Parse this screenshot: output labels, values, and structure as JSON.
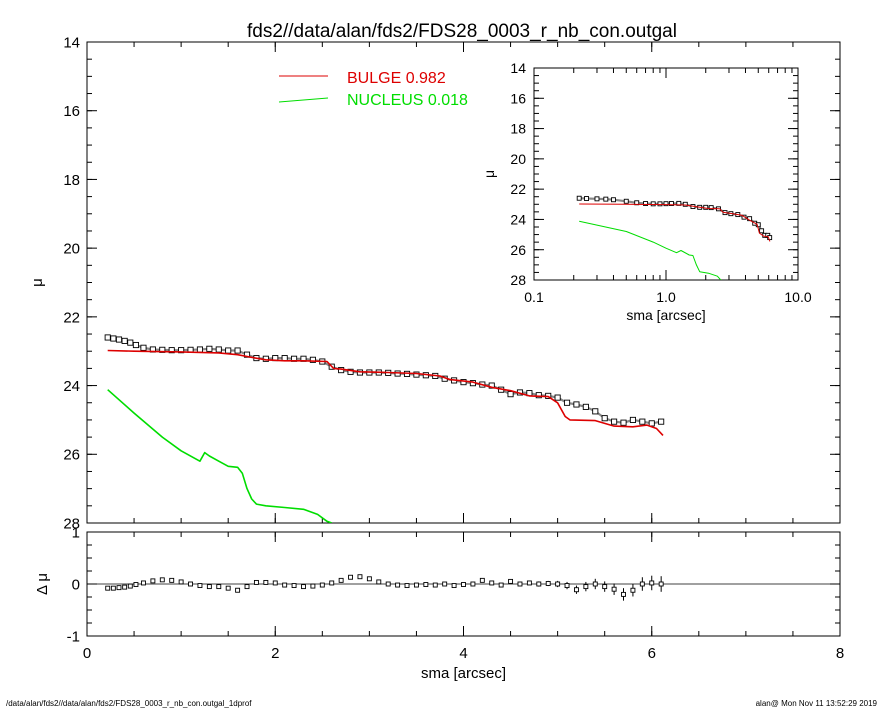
{
  "title": "fds2//data/alan/fds2/FDS28_0003_r_nb_con.outgal",
  "footer_left": "/data/alan/fds2//data/alan/fds2/FDS28_0003_r_nb_con.outgal_1dprof",
  "footer_right": "alan@  Mon Nov 11 13:52:29 2019",
  "colors": {
    "bulge": "#dd0000",
    "nucleus": "#00dd00",
    "data": "#000000",
    "model": "#888888"
  },
  "chart_data": [
    {
      "type": "scatter",
      "panel": "main",
      "xlabel": "sma [arcsec]",
      "ylabel": "μ",
      "xlim": [
        0,
        8
      ],
      "ylim": [
        28,
        14
      ],
      "xticks": [
        "0",
        "2",
        "4",
        "6",
        "8"
      ],
      "yticks": [
        "14",
        "16",
        "18",
        "20",
        "22",
        "24",
        "26",
        "28"
      ],
      "legend_placement": "top",
      "legend": [
        {
          "label": "BULGE",
          "value": "0.982",
          "color": "#dd0000"
        },
        {
          "label": "NUCLEUS",
          "value": "0.018",
          "color": "#00dd00"
        }
      ],
      "series": [
        {
          "name": "data",
          "style": "open-square",
          "x": [
            0.22,
            0.28,
            0.34,
            0.4,
            0.46,
            0.52,
            0.6,
            0.7,
            0.8,
            0.9,
            1.0,
            1.1,
            1.2,
            1.3,
            1.4,
            1.5,
            1.6,
            1.7,
            1.8,
            1.9,
            2.0,
            2.1,
            2.2,
            2.3,
            2.4,
            2.5,
            2.6,
            2.7,
            2.8,
            2.9,
            3.0,
            3.1,
            3.2,
            3.3,
            3.4,
            3.5,
            3.6,
            3.7,
            3.8,
            3.9,
            4.0,
            4.1,
            4.2,
            4.3,
            4.4,
            4.5,
            4.6,
            4.7,
            4.8,
            4.9,
            5.0,
            5.1,
            5.2,
            5.3,
            5.4,
            5.5,
            5.6,
            5.7,
            5.8,
            5.9,
            6.0,
            6.1
          ],
          "y": [
            22.6,
            22.63,
            22.66,
            22.7,
            22.75,
            22.82,
            22.9,
            22.95,
            22.96,
            22.97,
            22.97,
            22.96,
            22.95,
            22.93,
            22.95,
            22.98,
            22.98,
            23.1,
            23.2,
            23.22,
            23.2,
            23.2,
            23.22,
            23.22,
            23.25,
            23.3,
            23.45,
            23.55,
            23.6,
            23.62,
            23.62,
            23.62,
            23.63,
            23.65,
            23.66,
            23.68,
            23.7,
            23.72,
            23.8,
            23.85,
            23.9,
            23.93,
            23.97,
            24.0,
            24.12,
            24.25,
            24.2,
            24.22,
            24.28,
            24.3,
            24.35,
            24.5,
            24.55,
            24.62,
            24.75,
            24.95,
            25.05,
            25.08,
            25.0,
            25.05,
            25.1,
            25.05
          ]
        },
        {
          "name": "BULGE",
          "color": "#dd0000",
          "x": [
            0.22,
            0.5,
            1.0,
            1.4,
            1.6,
            1.75,
            1.9,
            2.1,
            2.3,
            2.55,
            2.62,
            2.7,
            2.9,
            3.2,
            3.5,
            3.75,
            3.85,
            4.1,
            4.3,
            4.5,
            4.7,
            4.9,
            5.0,
            5.08,
            5.13,
            5.4,
            5.5,
            5.6,
            5.8,
            5.95,
            6.05,
            6.12
          ],
          "y": [
            22.98,
            23.0,
            23.02,
            23.05,
            23.1,
            23.18,
            23.25,
            23.28,
            23.28,
            23.3,
            23.5,
            23.52,
            23.6,
            23.62,
            23.65,
            23.72,
            23.82,
            23.9,
            24.05,
            24.15,
            24.3,
            24.32,
            24.5,
            24.9,
            25.0,
            25.02,
            25.1,
            25.18,
            25.2,
            25.15,
            25.25,
            25.45
          ]
        },
        {
          "name": "NUCLEUS",
          "color": "#00dd00",
          "x": [
            0.22,
            0.5,
            0.8,
            1.0,
            1.2,
            1.25,
            1.3,
            1.4,
            1.5,
            1.6,
            1.65,
            1.7,
            1.75,
            1.8,
            1.9,
            2.1,
            2.3,
            2.45,
            2.55,
            2.6
          ],
          "y": [
            24.12,
            24.8,
            25.5,
            25.9,
            26.2,
            25.95,
            26.05,
            26.2,
            26.35,
            26.38,
            26.55,
            27.0,
            27.3,
            27.45,
            27.5,
            27.55,
            27.6,
            27.75,
            27.95,
            28.0
          ]
        }
      ]
    },
    {
      "type": "scatter",
      "panel": "inset",
      "xlabel": "sma [arcsec]",
      "ylabel": "μ",
      "xscale": "log",
      "xlim": [
        0.1,
        10.0
      ],
      "ylim": [
        28,
        14
      ],
      "xticks": [
        "0.1",
        "1.0",
        "10.0"
      ],
      "yticks": [
        "14",
        "16",
        "18",
        "20",
        "22",
        "24",
        "26",
        "28"
      ],
      "series": [
        {
          "name": "data",
          "style": "open-square",
          "x": [
            0.22,
            0.25,
            0.3,
            0.35,
            0.4,
            0.5,
            0.6,
            0.7,
            0.8,
            0.9,
            1.0,
            1.1,
            1.25,
            1.4,
            1.6,
            1.8,
            2.0,
            2.2,
            2.5,
            2.8,
            3.1,
            3.5,
            3.9,
            4.3,
            4.7,
            5.0,
            5.3,
            5.6,
            5.9,
            6.1
          ],
          "y": [
            22.6,
            22.62,
            22.64,
            22.66,
            22.7,
            22.8,
            22.9,
            22.95,
            22.97,
            22.97,
            22.96,
            22.95,
            22.94,
            23.0,
            23.15,
            23.2,
            23.2,
            23.22,
            23.3,
            23.55,
            23.62,
            23.68,
            23.85,
            23.95,
            24.25,
            24.35,
            24.75,
            25.05,
            25.05,
            25.2
          ]
        },
        {
          "name": "BULGE",
          "color": "#dd0000",
          "x": [
            0.22,
            0.5,
            1.0,
            1.4,
            1.75,
            2.1,
            2.55,
            2.7,
            3.2,
            3.75,
            4.3,
            4.9,
            5.1,
            5.5,
            5.95,
            6.12
          ],
          "y": [
            22.98,
            23.0,
            23.02,
            23.05,
            23.18,
            23.28,
            23.3,
            23.52,
            23.62,
            23.72,
            24.05,
            24.32,
            24.9,
            25.1,
            25.15,
            25.45
          ]
        },
        {
          "name": "NUCLEUS",
          "color": "#00dd00",
          "x": [
            0.22,
            0.5,
            0.8,
            1.0,
            1.2,
            1.3,
            1.5,
            1.6,
            1.7,
            1.8,
            2.1,
            2.45,
            2.6
          ],
          "y": [
            24.12,
            24.8,
            25.5,
            25.9,
            26.2,
            26.05,
            26.35,
            26.38,
            27.0,
            27.45,
            27.55,
            27.75,
            28.0
          ]
        }
      ]
    },
    {
      "type": "scatter",
      "panel": "residual",
      "xlabel": "sma [arcsec]",
      "ylabel": "Δ μ",
      "xlim": [
        0,
        8
      ],
      "ylim": [
        -1,
        1
      ],
      "xticks": [
        "0",
        "2",
        "4",
        "6",
        "8"
      ],
      "yticks": [
        "-1",
        "0",
        "1"
      ],
      "series": [
        {
          "name": "residual",
          "style": "open-square",
          "x": [
            0.22,
            0.28,
            0.34,
            0.4,
            0.46,
            0.52,
            0.6,
            0.7,
            0.8,
            0.9,
            1.0,
            1.1,
            1.2,
            1.3,
            1.4,
            1.5,
            1.6,
            1.7,
            1.8,
            1.9,
            2.0,
            2.1,
            2.2,
            2.3,
            2.4,
            2.5,
            2.6,
            2.7,
            2.8,
            2.9,
            3.0,
            3.1,
            3.2,
            3.3,
            3.4,
            3.5,
            3.6,
            3.7,
            3.8,
            3.9,
            4.0,
            4.1,
            4.2,
            4.3,
            4.4,
            4.5,
            4.6,
            4.7,
            4.8,
            4.9,
            5.0,
            5.1,
            5.2,
            5.3,
            5.4,
            5.5,
            5.6,
            5.7,
            5.8,
            5.9,
            6.0,
            6.1
          ],
          "y": [
            -0.08,
            -0.08,
            -0.07,
            -0.06,
            -0.04,
            -0.01,
            0.02,
            0.06,
            0.08,
            0.07,
            0.04,
            0.0,
            -0.03,
            -0.05,
            -0.05,
            -0.08,
            -0.12,
            -0.05,
            0.03,
            0.03,
            0.02,
            -0.02,
            -0.03,
            -0.05,
            -0.04,
            -0.02,
            0.02,
            0.07,
            0.13,
            0.14,
            0.1,
            0.04,
            0.0,
            -0.02,
            -0.03,
            -0.02,
            -0.01,
            -0.02,
            0.0,
            -0.03,
            -0.01,
            0.0,
            0.07,
            0.02,
            -0.02,
            0.05,
            0.0,
            0.02,
            0.0,
            0.01,
            0.0,
            -0.03,
            -0.11,
            -0.05,
            0.0,
            -0.05,
            -0.1,
            -0.2,
            -0.12,
            0.0,
            0.02,
            0.0
          ],
          "err": [
            0.01,
            0.01,
            0.01,
            0.01,
            0.01,
            0.01,
            0.01,
            0.01,
            0.01,
            0.01,
            0.01,
            0.01,
            0.01,
            0.01,
            0.01,
            0.01,
            0.01,
            0.01,
            0.01,
            0.01,
            0.01,
            0.01,
            0.01,
            0.01,
            0.01,
            0.01,
            0.01,
            0.01,
            0.02,
            0.02,
            0.02,
            0.02,
            0.02,
            0.02,
            0.02,
            0.02,
            0.02,
            0.02,
            0.02,
            0.02,
            0.03,
            0.03,
            0.03,
            0.03,
            0.03,
            0.04,
            0.04,
            0.04,
            0.05,
            0.05,
            0.06,
            0.07,
            0.08,
            0.09,
            0.1,
            0.1,
            0.11,
            0.12,
            0.12,
            0.13,
            0.14,
            0.15
          ]
        }
      ]
    }
  ]
}
